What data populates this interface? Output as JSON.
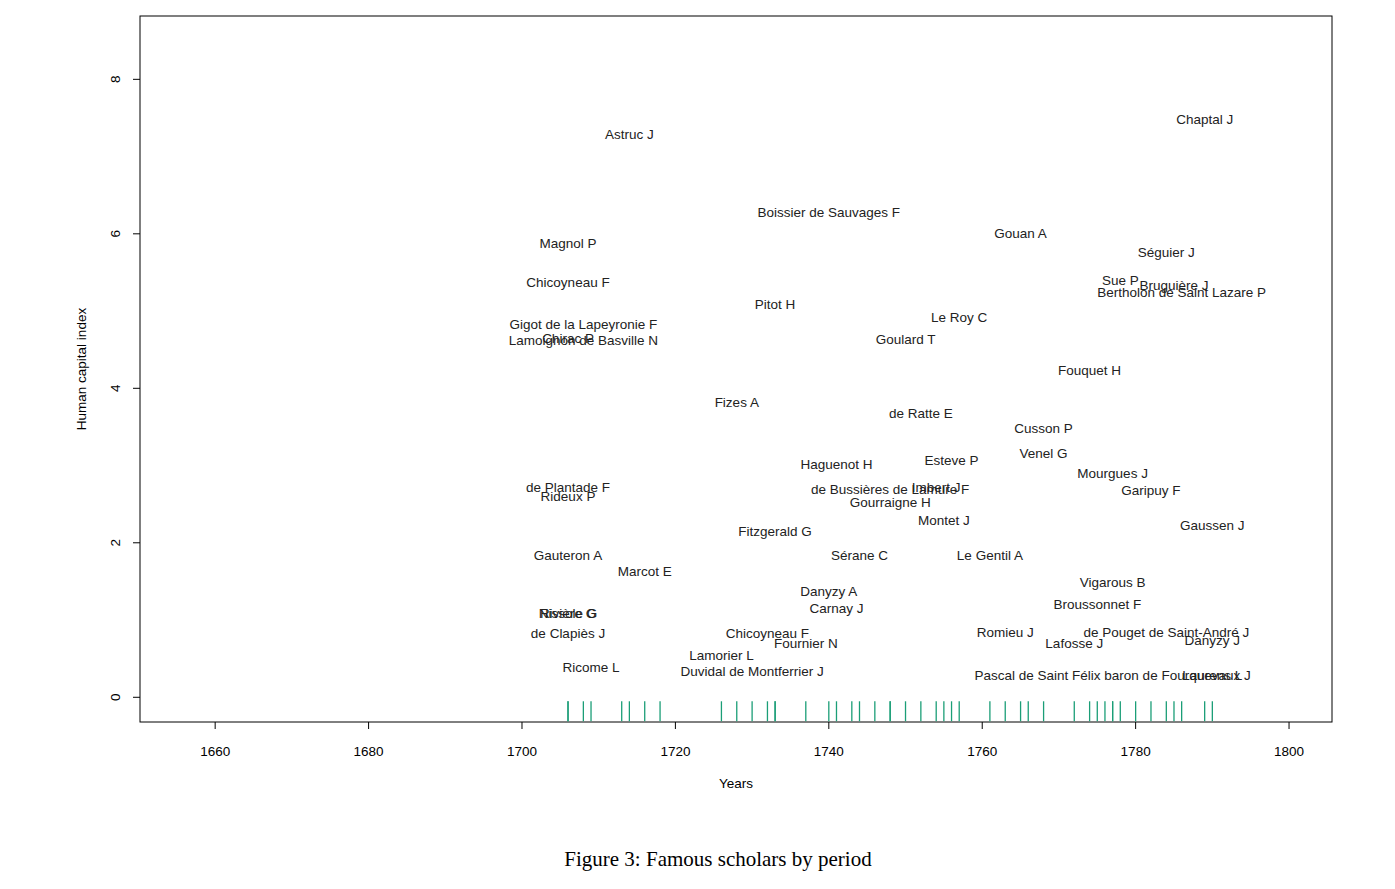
{
  "chart_data": {
    "type": "scatter",
    "title": "Figure 3: Famous scholars by period",
    "x_label": "Years",
    "y_label": "Human capital index",
    "xlim": [
      1650.2,
      1805.6
    ],
    "ylim": [
      -0.32,
      8.82
    ],
    "xticks": [
      1660,
      1680,
      1700,
      1720,
      1740,
      1760,
      1780,
      1800
    ],
    "yticks": [
      0,
      2,
      4,
      6,
      8
    ],
    "marker": "text",
    "color": "#1b9e77",
    "x": [
      1714,
      1789,
      1740,
      1765,
      1706,
      1784,
      1706,
      1778,
      1785,
      1786,
      1733,
      1757,
      1708,
      1706,
      1708,
      1750,
      1774,
      1728,
      1752,
      1768,
      1768,
      1741,
      1756,
      1777,
      1706,
      1706,
      1754,
      1748,
      1782,
      1748,
      1755,
      1790,
      1733,
      1706,
      1744,
      1761,
      1716,
      1777,
      1740,
      1775,
      1741,
      1706,
      1706,
      1706,
      1732,
      1763,
      1784,
      1737,
      1772,
      1790,
      1726,
      1709,
      1730,
      1777,
      1790
    ],
    "values": [
      7.29,
      7.48,
      6.28,
      6.01,
      5.88,
      5.76,
      5.37,
      5.4,
      5.33,
      5.24,
      5.09,
      4.92,
      4.83,
      4.65,
      4.62,
      4.63,
      4.23,
      3.81,
      3.68,
      3.48,
      3.15,
      3.02,
      3.06,
      2.9,
      2.72,
      2.6,
      2.72,
      2.69,
      2.68,
      2.52,
      2.29,
      2.23,
      2.14,
      1.84,
      1.83,
      1.83,
      1.63,
      1.48,
      1.37,
      1.2,
      1.15,
      1.09,
      1.09,
      0.83,
      0.83,
      0.84,
      0.84,
      0.7,
      0.7,
      0.74,
      0.54,
      0.38,
      0.34,
      0.28,
      0.28
    ],
    "labels": [
      "Astruc J",
      "Chaptal J",
      "Boissier de Sauvages F",
      "Gouan A",
      "Magnol P",
      "Séguier J",
      "Chicoyneau F",
      "Sue P",
      "Bruguière J",
      "Bertholon de Saint Lazare P",
      "Pitot H",
      "Le Roy C",
      "Gigot de la Lapeyronie F",
      "Chirac P",
      "Lamoignon de Basville N",
      "Goulard T",
      "Fouquet H",
      "Fizes A",
      "de Ratte E",
      "Cusson P",
      "Venel G",
      "Haguenot H",
      "Esteve P",
      "Mourgues J",
      "de Plantade F",
      "Rideux P",
      "Imbert J",
      "de Bussières de Lamure F",
      "Garipuy F",
      "Gourraigne H",
      "Montet J",
      "Gaussen J",
      "Fitzgerald G",
      "Gauteron A",
      "Sérane C",
      "Le Gentil A",
      "Marcot E",
      "Vigarous B",
      "Danyzy A",
      "Broussonnet F",
      "Carnay J",
      "Nissole G",
      "Rivière G",
      "de Clapiès J",
      "Chicoyneau F",
      "Romieu J",
      "de Pouget de Saint-André J",
      "Fournier N",
      "Lafosse J",
      "Danyzy J",
      "Lamorier L",
      "Ricome L",
      "Duvidal de Montferrier J",
      "Pascal de Saint Félix baron de Fourquevaux J",
      "Laurens L"
    ],
    "rug": [
      1706,
      1706,
      1708,
      1709,
      1713,
      1714,
      1716,
      1718,
      1726,
      1728,
      1730,
      1732,
      1733,
      1733,
      1737,
      1740,
      1741,
      1743,
      1744,
      1746,
      1748,
      1748,
      1750,
      1752,
      1754,
      1755,
      1756,
      1757,
      1761,
      1763,
      1765,
      1766,
      1768,
      1772,
      1774,
      1775,
      1776,
      1777,
      1777,
      1778,
      1780,
      1782,
      1784,
      1785,
      1786,
      1789,
      1790
    ]
  }
}
